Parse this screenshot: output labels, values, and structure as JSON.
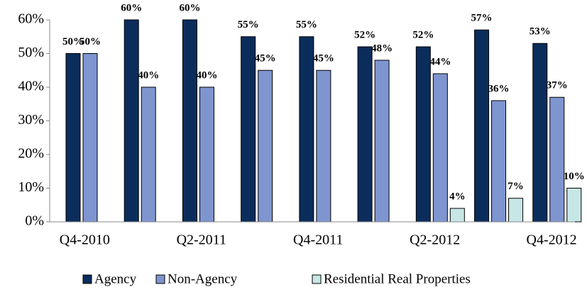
{
  "chart_data": {
    "type": "bar",
    "categories": [
      "Q4-2010",
      null,
      "Q2-2011",
      null,
      "Q4-2011",
      null,
      "Q2-2012",
      null,
      "Q4-2012"
    ],
    "series": [
      {
        "name": "Agency",
        "color": "#0b2d5c",
        "values": [
          50,
          60,
          60,
          55,
          55,
          52,
          52,
          57,
          53
        ],
        "value_labels": [
          "50%",
          "60%",
          "60%",
          "55%",
          "55%",
          "52%",
          "52%",
          "57%",
          "53%"
        ]
      },
      {
        "name": "Non-Agency",
        "color": "#7e95cf",
        "values": [
          50,
          40,
          40,
          45,
          45,
          48,
          44,
          36,
          37
        ],
        "value_labels": [
          "50%",
          "40%",
          "40%",
          "45%",
          "45%",
          "48%",
          "44%",
          "36%",
          "37%"
        ]
      },
      {
        "name": "Residential Real Properties",
        "color": "#c7e6e6",
        "values": [
          null,
          null,
          null,
          null,
          null,
          null,
          4,
          7,
          10
        ],
        "value_labels": [
          null,
          null,
          null,
          null,
          null,
          null,
          "4%",
          "7%",
          "10%"
        ]
      }
    ],
    "ylim": [
      0,
      60
    ],
    "yticks": [
      {
        "value": 0,
        "label": "0%"
      },
      {
        "value": 10,
        "label": "10%"
      },
      {
        "value": 20,
        "label": "20%"
      },
      {
        "value": 30,
        "label": "30%"
      },
      {
        "value": 40,
        "label": "40%"
      },
      {
        "value": 50,
        "label": "50%"
      },
      {
        "value": 60,
        "label": "60%"
      }
    ],
    "grid": false,
    "legend": "bottom"
  }
}
